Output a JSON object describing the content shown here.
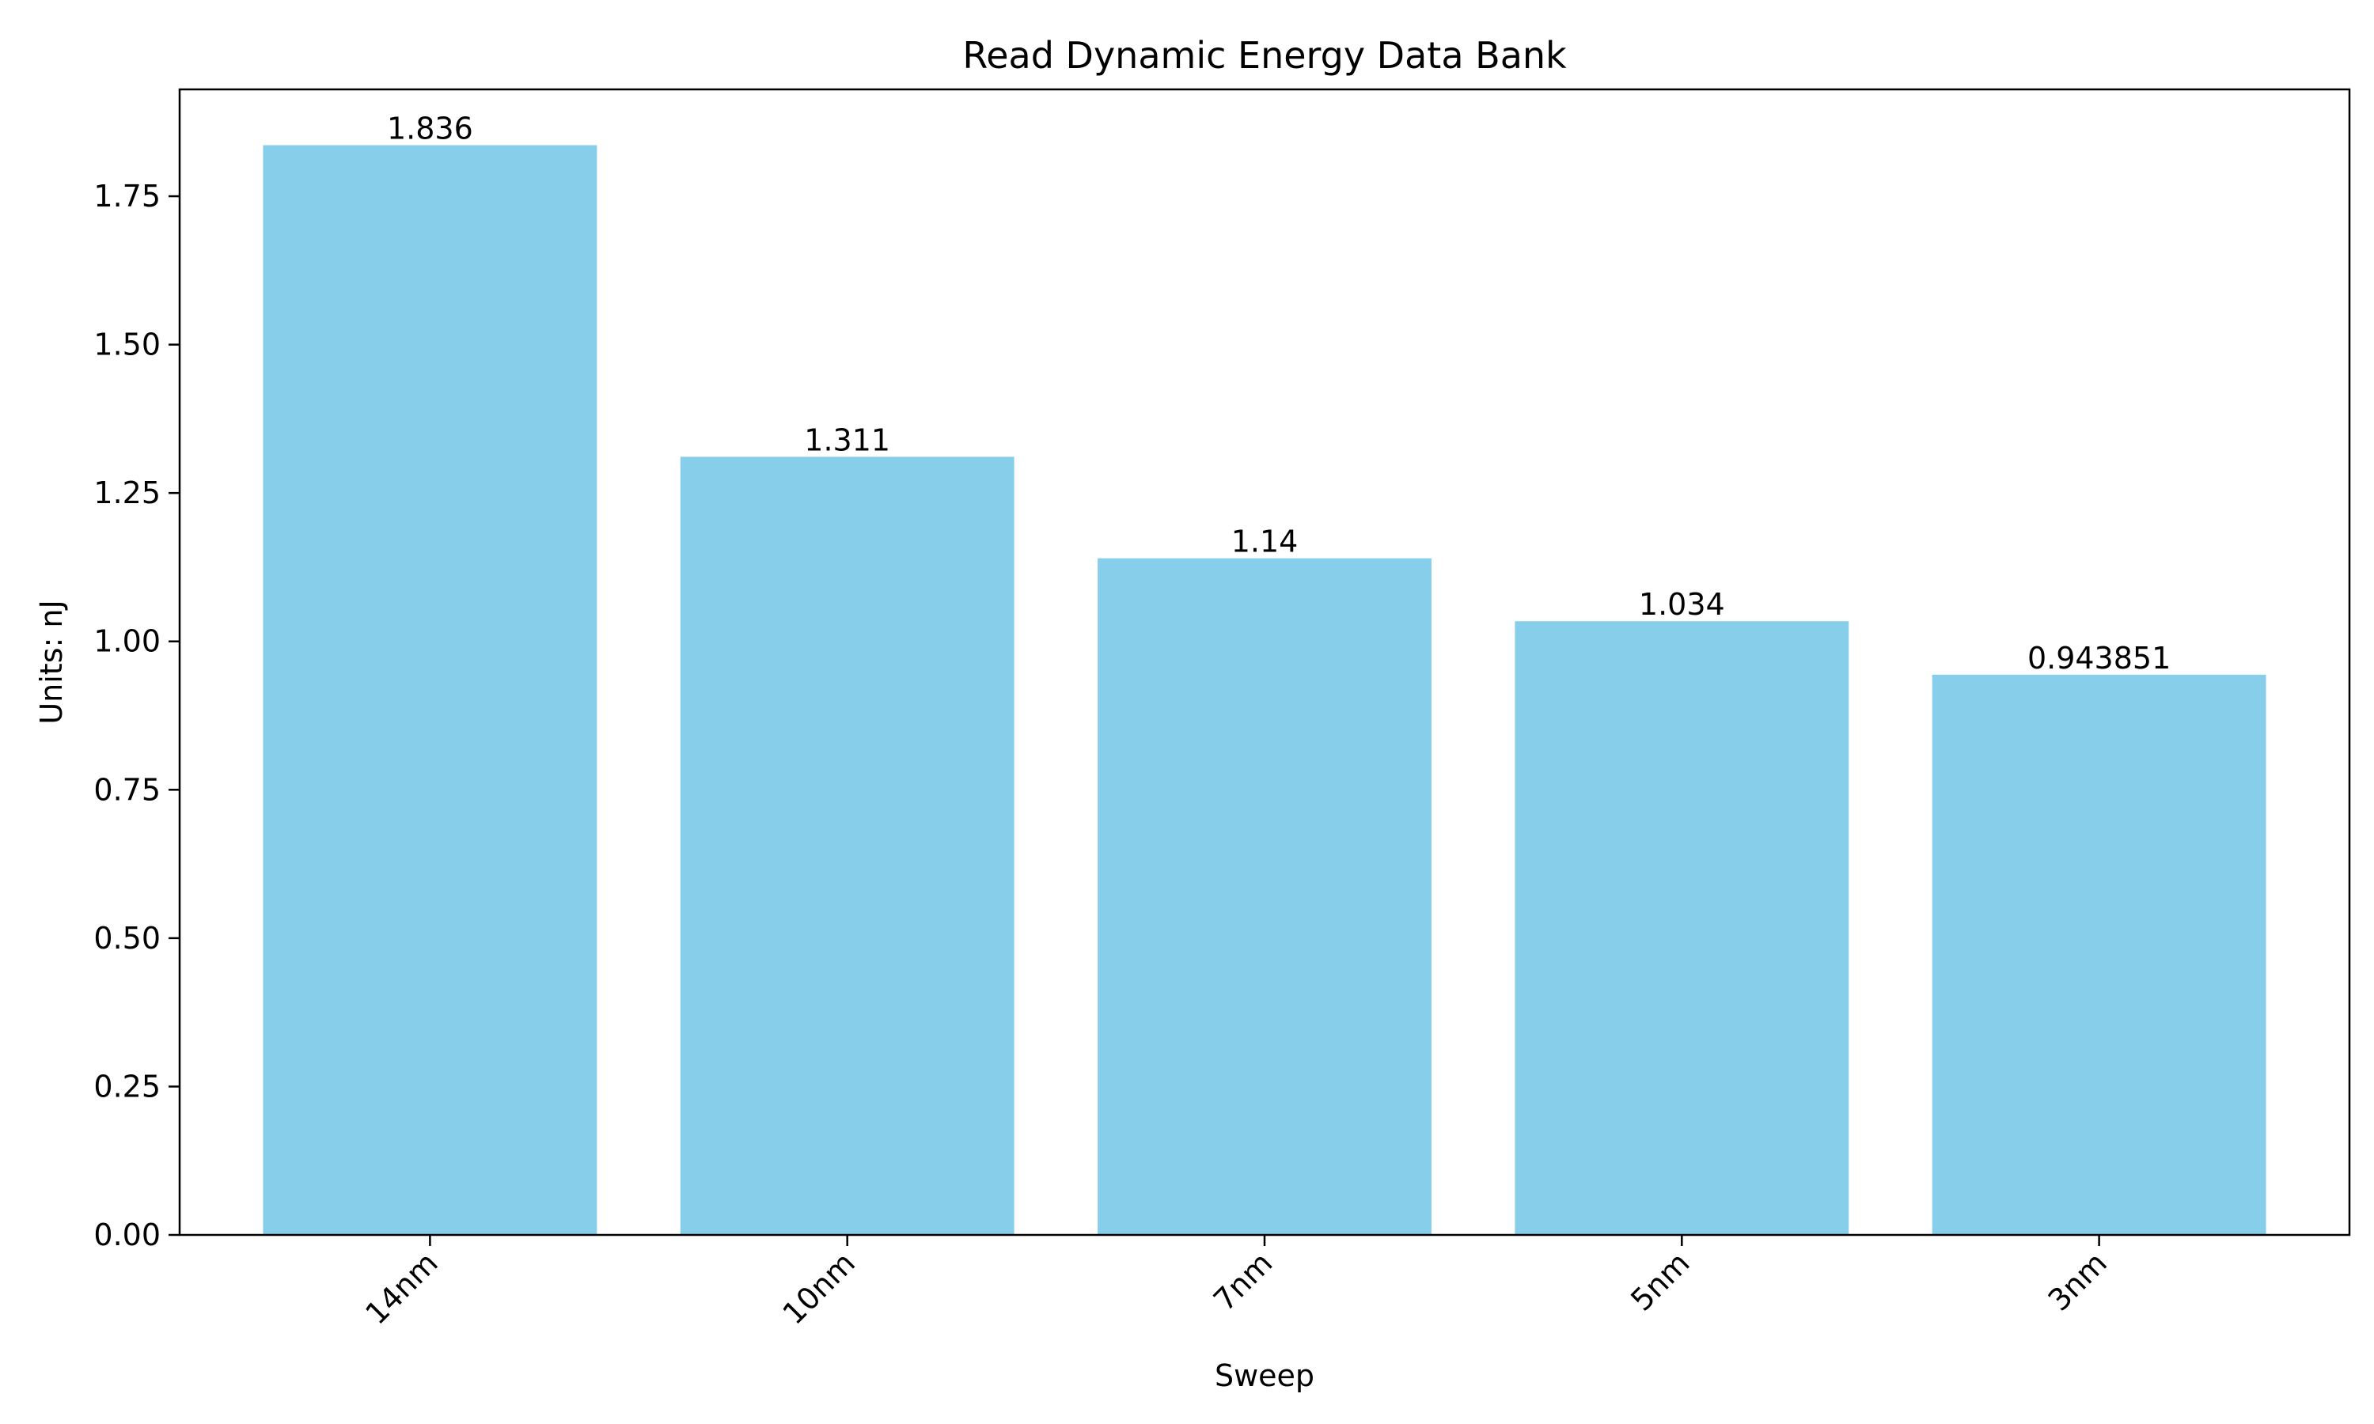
{
  "chart_data": {
    "type": "bar",
    "title": "Read Dynamic Energy Data Bank",
    "xlabel": "Sweep",
    "ylabel": "Units: nJ",
    "categories": [
      "14nm",
      "10nm",
      "7nm",
      "5nm",
      "3nm"
    ],
    "values": [
      1.836,
      1.311,
      1.14,
      1.034,
      0.943851
    ],
    "value_labels": [
      "1.836",
      "1.311",
      "1.14",
      "1.034",
      "0.943851"
    ],
    "ylim": [
      0,
      1.93
    ],
    "yticks": [
      0.0,
      0.25,
      0.5,
      0.75,
      1.0,
      1.25,
      1.5,
      1.75
    ],
    "ytick_labels": [
      "0.00",
      "0.25",
      "0.50",
      "0.75",
      "1.00",
      "1.25",
      "1.50",
      "1.75"
    ],
    "grid": false,
    "bar_color": "#87CEEB"
  }
}
